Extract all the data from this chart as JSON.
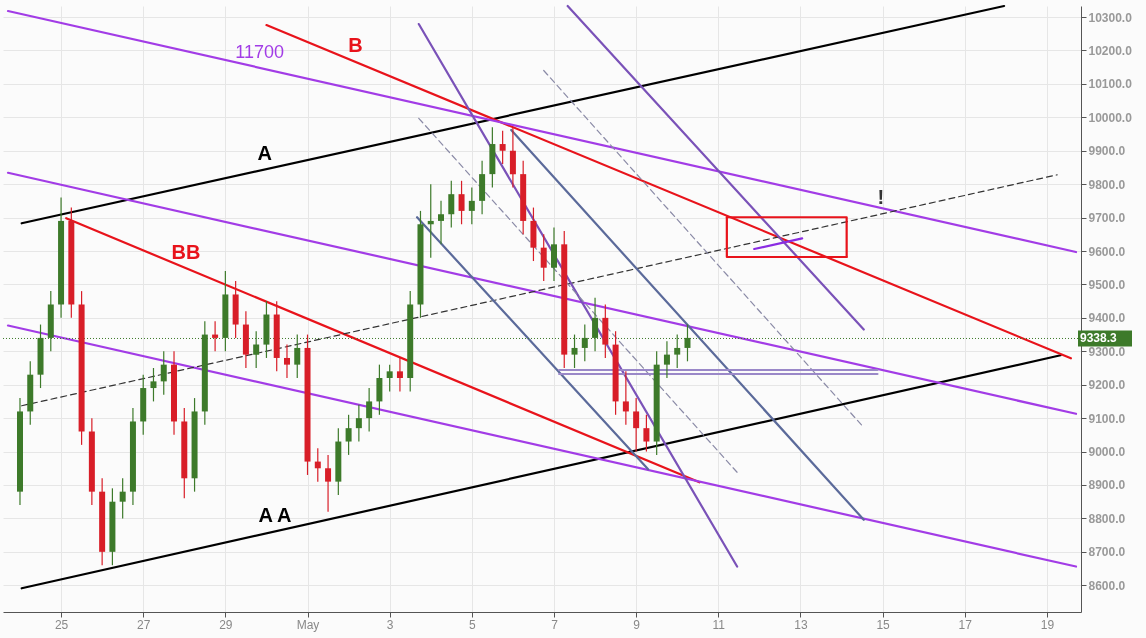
{
  "chart_data": {
    "type": "candlestick",
    "x": [
      "--04-24T00:00",
      "--04-24T06:00",
      "--04-24T12:00",
      "--04-24T18:00",
      "--04-25T00:00",
      "--04-25T06:00",
      "--04-25T12:00",
      "--04-25T18:00",
      "--04-26T00:00",
      "--04-26T06:00",
      "--04-26T12:00",
      "--04-26T18:00",
      "--04-27T00:00",
      "--04-27T06:00",
      "--04-27T12:00",
      "--04-27T18:00",
      "--04-28T00:00",
      "--04-28T06:00",
      "--04-28T12:00",
      "--04-28T18:00",
      "--04-29T00:00",
      "--04-29T06:00",
      "--04-29T12:00",
      "--04-29T18:00",
      "--04-30T00:00",
      "--04-30T06:00",
      "--04-30T12:00",
      "--04-30T18:00",
      "--05-01T00:00",
      "--05-01T06:00",
      "--05-01T12:00",
      "--05-01T18:00",
      "--05-02T00:00",
      "--05-02T06:00",
      "--05-02T12:00",
      "--05-02T18:00",
      "--05-03T00:00",
      "--05-03T06:00",
      "--05-03T12:00",
      "--05-03T18:00",
      "--05-04T00:00",
      "--05-04T06:00",
      "--05-04T12:00",
      "--05-04T18:00",
      "--05-05T00:00",
      "--05-05T06:00",
      "--05-05T12:00",
      "--05-05T18:00",
      "--05-06T00:00",
      "--05-06T06:00",
      "--05-06T12:00",
      "--05-06T18:00",
      "--05-07T00:00",
      "--05-07T06:00",
      "--05-07T12:00",
      "--05-07T18:00",
      "--05-08T00:00",
      "--05-08T06:00",
      "--05-08T12:00",
      "--05-08T18:00",
      "--05-09T00:00",
      "--05-09T06:00",
      "--05-09T12:00",
      "--05-09T18:00",
      "--05-10T00:00",
      "--05-10T06:00"
    ],
    "ohlc": [
      [
        8880,
        9160,
        8840,
        9120
      ],
      [
        9120,
        9270,
        9080,
        9230
      ],
      [
        9230,
        9380,
        9190,
        9340
      ],
      [
        9340,
        9480,
        9300,
        9440
      ],
      [
        9440,
        9760,
        9400,
        9690
      ],
      [
        9690,
        9730,
        9400,
        9440
      ],
      [
        9440,
        9480,
        9020,
        9060
      ],
      [
        9060,
        9100,
        8840,
        8880
      ],
      [
        8880,
        8920,
        8660,
        8700
      ],
      [
        8700,
        8890,
        8660,
        8850
      ],
      [
        8850,
        8920,
        8800,
        8880
      ],
      [
        8880,
        9130,
        8840,
        9090
      ],
      [
        9090,
        9230,
        9050,
        9190
      ],
      [
        9190,
        9250,
        9150,
        9210
      ],
      [
        9210,
        9300,
        9170,
        9260
      ],
      [
        9260,
        9300,
        9050,
        9090
      ],
      [
        9090,
        9130,
        8860,
        8920
      ],
      [
        8920,
        9160,
        8880,
        9120
      ],
      [
        9120,
        9390,
        9080,
        9350
      ],
      [
        9350,
        9390,
        9300,
        9340
      ],
      [
        9340,
        9540,
        9300,
        9470
      ],
      [
        9470,
        9510,
        9340,
        9380
      ],
      [
        9380,
        9420,
        9250,
        9290
      ],
      [
        9290,
        9360,
        9250,
        9320
      ],
      [
        9320,
        9450,
        9280,
        9410
      ],
      [
        9410,
        9450,
        9240,
        9280
      ],
      [
        9280,
        9320,
        9220,
        9260
      ],
      [
        9260,
        9350,
        9220,
        9310
      ],
      [
        9310,
        9350,
        8930,
        8970
      ],
      [
        8970,
        9010,
        8910,
        8950
      ],
      [
        8950,
        8990,
        8820,
        8910
      ],
      [
        8910,
        9070,
        8870,
        9030
      ],
      [
        9030,
        9110,
        8990,
        9070
      ],
      [
        9070,
        9140,
        9030,
        9100
      ],
      [
        9100,
        9190,
        9060,
        9150
      ],
      [
        9150,
        9260,
        9110,
        9220
      ],
      [
        9220,
        9260,
        9180,
        9240
      ],
      [
        9240,
        9280,
        9180,
        9220
      ],
      [
        9220,
        9480,
        9180,
        9440
      ],
      [
        9440,
        9720,
        9400,
        9680
      ],
      [
        9680,
        9800,
        9580,
        9690
      ],
      [
        9690,
        9750,
        9620,
        9710
      ],
      [
        9710,
        9810,
        9670,
        9770
      ],
      [
        9770,
        9810,
        9680,
        9720
      ],
      [
        9720,
        9790,
        9680,
        9750
      ],
      [
        9750,
        9870,
        9710,
        9830
      ],
      [
        9830,
        9970,
        9790,
        9920
      ],
      [
        9920,
        9960,
        9860,
        9900
      ],
      [
        9900,
        9970,
        9790,
        9830
      ],
      [
        9830,
        9870,
        9650,
        9690
      ],
      [
        9690,
        9730,
        9570,
        9610
      ],
      [
        9610,
        9650,
        9510,
        9550
      ],
      [
        9550,
        9670,
        9510,
        9620
      ],
      [
        9620,
        9660,
        9250,
        9290
      ],
      [
        9290,
        9350,
        9250,
        9310
      ],
      [
        9310,
        9380,
        9270,
        9340
      ],
      [
        9340,
        9460,
        9300,
        9400
      ],
      [
        9400,
        9440,
        9280,
        9320
      ],
      [
        9320,
        9360,
        9110,
        9150
      ],
      [
        9150,
        9240,
        9080,
        9120
      ],
      [
        9120,
        9160,
        9000,
        9070
      ],
      [
        9070,
        9110,
        9000,
        9030
      ],
      [
        9030,
        9300,
        8990,
        9260
      ],
      [
        9260,
        9330,
        9220,
        9290
      ],
      [
        9290,
        9350,
        9250,
        9310
      ],
      [
        9310,
        9380,
        9270,
        9340
      ]
    ],
    "colors": [
      "#3d7a2a",
      "#3d7a2a",
      "#3d7a2a",
      "#3d7a2a",
      "#3d7a2a",
      "#d81e28",
      "#d81e28",
      "#d81e28",
      "#d81e28",
      "#3d7a2a",
      "#3d7a2a",
      "#3d7a2a",
      "#3d7a2a",
      "#3d7a2a",
      "#3d7a2a",
      "#d81e28",
      "#d81e28",
      "#3d7a2a",
      "#3d7a2a",
      "#d81e28",
      "#3d7a2a",
      "#d81e28",
      "#d81e28",
      "#3d7a2a",
      "#3d7a2a",
      "#d81e28",
      "#d81e28",
      "#3d7a2a",
      "#d81e28",
      "#d81e28",
      "#d81e28",
      "#3d7a2a",
      "#3d7a2a",
      "#3d7a2a",
      "#3d7a2a",
      "#3d7a2a",
      "#3d7a2a",
      "#d81e28",
      "#3d7a2a",
      "#3d7a2a",
      "#3d7a2a",
      "#3d7a2a",
      "#3d7a2a",
      "#d81e28",
      "#3d7a2a",
      "#3d7a2a",
      "#3d7a2a",
      "#d81e28",
      "#d81e28",
      "#d81e28",
      "#d81e28",
      "#d81e28",
      "#3d7a2a",
      "#d81e28",
      "#3d7a2a",
      "#3d7a2a",
      "#3d7a2a",
      "#d81e28",
      "#d81e28",
      "#d81e28",
      "#d81e28",
      "#d81e28",
      "#3d7a2a",
      "#3d7a2a",
      "#3d7a2a",
      "#3d7a2a"
    ],
    "series": [
      {
        "type": "line",
        "x": [
          "--04-24T01:00",
          "--05-17T23:00"
        ],
        "values": [
          9683,
          10333
        ],
        "color": "#000000"
      },
      {
        "type": "line",
        "x": [
          "--04-24T01:00",
          "--05-19T08:00"
        ],
        "values": [
          8591,
          9288
        ],
        "color": "#000000"
      },
      {
        "type": "line",
        "x": [
          "--04-30T00:00",
          "--05-19T14:00"
        ],
        "values": [
          10276,
          9279
        ],
        "color": "#e8131b"
      },
      {
        "type": "line",
        "x": [
          "--04-25T03:00",
          "--05-10T13:00"
        ],
        "values": [
          9698,
          8908
        ],
        "color": "#e8131b"
      },
      {
        "type": "line",
        "x": [
          "--04-23T17:00",
          "--05-19T17:00"
        ],
        "values": [
          10318,
          9597
        ],
        "color": "#a23ce6"
      },
      {
        "type": "line",
        "x": [
          "--04-23T17:00",
          "--05-19T17:00"
        ],
        "values": [
          9834,
          9113
        ],
        "color": "#a23ce6"
      },
      {
        "type": "line",
        "x": [
          "--04-23T17:00",
          "--05-19T17:00"
        ],
        "values": [
          9377,
          8656
        ],
        "color": "#a23ce6"
      },
      {
        "type": "line",
        "x": [
          "--04-24T01:00",
          "--05-19T06:00"
        ],
        "values": [
          9137,
          9828
        ],
        "color": "#333333",
        "line_style": "dashed"
      },
      {
        "type": "line",
        "x": [
          "--05-07T08:00",
          "--05-14T13:00"
        ],
        "values": [
          10333,
          9365
        ],
        "color": "#7a52b8"
      },
      {
        "type": "line",
        "x": [
          "--05-03T17:00",
          "--05-11T11:00"
        ],
        "values": [
          10279,
          8656
        ],
        "color": "#7a52b8"
      },
      {
        "type": "line",
        "x": [
          "--05-05T23:00",
          "--05-14T13:00"
        ],
        "values": [
          9962,
          8796
        ],
        "color": "#5b6a9a"
      },
      {
        "type": "line",
        "x": [
          "--05-03T16:00",
          "--05-09T07:00"
        ],
        "values": [
          9701,
          8947
        ],
        "color": "#5b6a9a"
      },
      {
        "type": "line",
        "x": [
          "--05-03T17:00",
          "--05-11T11:00"
        ],
        "values": [
          9997,
          8938
        ],
        "color": "#8a8aa6",
        "line_style": "dashed"
      },
      {
        "type": "line",
        "x": [
          "--05-06T18:00",
          "--05-14T13:00"
        ],
        "values": [
          10140,
          9072
        ],
        "color": "#8a8aa6",
        "line_style": "dashed"
      },
      {
        "type": "line",
        "x": [
          "--05-07T03:00",
          "--05-14T21:00"
        ],
        "values": [
          9244,
          9244
        ],
        "color": "#9a88c8"
      },
      {
        "type": "line",
        "x": [
          "--05-07T03:00",
          "--05-14T21:00"
        ],
        "values": [
          9232,
          9232
        ],
        "color": "#9a88c8"
      },
      {
        "type": "line",
        "x": [
          "--05-11T21:00",
          "--05-13T01:00"
        ],
        "values": [
          9606,
          9638
        ],
        "color": "#8a2be2"
      },
      {
        "type": "line",
        "x": [
          "--05-11T05:00",
          "--05-14T03:00",
          "--05-14T03:00"
        ],
        "values": [
          9701,
          9701,
          9582
        ],
        "color": "#e8131b"
      },
      {
        "type": "line",
        "x": [
          "--05-11T05:00",
          "--05-11T05:00",
          "--05-14T03:00"
        ],
        "values": [
          9701,
          9582,
          9582
        ],
        "color": "#e8131b"
      }
    ],
    "ref_lines": [
      {
        "axis": "y",
        "value": 9338.3,
        "label": "9338.3",
        "color": "#3d7a2a",
        "line_style": "dotted"
      }
    ],
    "annotations": [
      {
        "text": "A",
        "x": "--04-29T23:00",
        "y": 9843
      },
      {
        "text": "A A",
        "x": "--04-30T05:00",
        "y": 8760
      },
      {
        "text": "B",
        "x": "--05-02T04:00",
        "y": 10166
      },
      {
        "text": "BB",
        "x": "--04-28T01:00",
        "y": 9547
      },
      {
        "text": "11700",
        "x": "--04-29T20:00",
        "y": 10148
      },
      {
        "text": "!",
        "x": "--05-14T23:00",
        "y": 9710
      }
    ],
    "xlim": [
      "--04-23T17:00",
      "--05-19T17:00"
    ],
    "xticks": [
      {
        "value": "--04-25",
        "label": "25"
      },
      {
        "value": "--04-27",
        "label": "27"
      },
      {
        "value": "--04-29",
        "label": "29"
      },
      {
        "value": "--05-01",
        "label": "May"
      },
      {
        "value": "--05-03",
        "label": "3"
      },
      {
        "value": "--05-05",
        "label": "5"
      },
      {
        "value": "--05-07",
        "label": "7"
      },
      {
        "value": "--05-09",
        "label": "9"
      },
      {
        "value": "--05-11",
        "label": "11"
      },
      {
        "value": "--05-13",
        "label": "13"
      },
      {
        "value": "--05-15",
        "label": "15"
      },
      {
        "value": "--05-17",
        "label": "17"
      },
      {
        "value": "--05-19",
        "label": "19"
      }
    ],
    "ylim": [
      8520,
      10333
    ],
    "yticks": [
      {
        "value": 8600,
        "label": "8600.0"
      },
      {
        "value": 8700,
        "label": "8700.0"
      },
      {
        "value": 8800,
        "label": "8800.0"
      },
      {
        "value": 8900,
        "label": "8900.0"
      },
      {
        "value": 9000,
        "label": "9000.0"
      },
      {
        "value": 9100,
        "label": "9100.0"
      },
      {
        "value": 9200,
        "label": "9200.0"
      },
      {
        "value": 9300,
        "label": "9300.0"
      },
      {
        "value": 9400,
        "label": "9400.0"
      },
      {
        "value": 9500,
        "label": "9500.0"
      },
      {
        "value": 9600,
        "label": "9600.0"
      },
      {
        "value": 9700,
        "label": "9700.0"
      },
      {
        "value": 9800,
        "label": "9800.0"
      },
      {
        "value": 9900,
        "label": "9900.0"
      },
      {
        "value": 10000,
        "label": "10000.0"
      },
      {
        "value": 10100,
        "label": "10100.0"
      },
      {
        "value": 10200,
        "label": "10200.0"
      },
      {
        "value": 10300,
        "label": "10300.0"
      }
    ],
    "grid": true
  }
}
